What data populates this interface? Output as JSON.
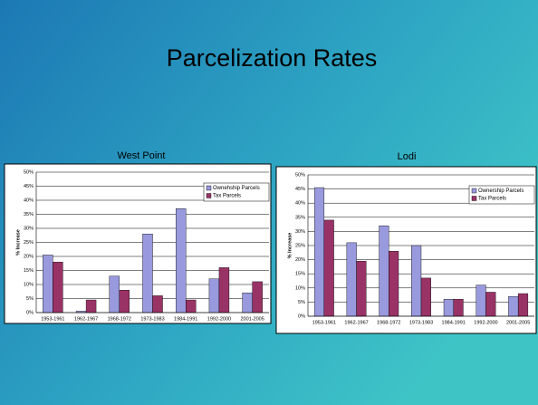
{
  "slide": {
    "title": "Parcelization Rates"
  },
  "chart_data": [
    {
      "type": "bar",
      "title": "West Point",
      "y_label": "% Increase",
      "categories": [
        "1953-1961",
        "1962-1967",
        "1968-1972",
        "1973-1983",
        "1984-1991",
        "1992-2000",
        "2001-2005"
      ],
      "series": [
        {
          "name": "Ownehship Parcels",
          "color": "#9999dd",
          "values": [
            20.5,
            0.5,
            13,
            28,
            37,
            12,
            7
          ]
        },
        {
          "name": "Tax Parcels",
          "color": "#993366",
          "values": [
            18,
            4.5,
            8,
            6,
            4.5,
            16,
            11
          ]
        }
      ],
      "ylim": [
        0,
        50
      ],
      "yticks": [
        {
          "value": 0,
          "label": "0%"
        },
        {
          "value": 5,
          "label": "5%"
        },
        {
          "value": 10,
          "label": "10%"
        },
        {
          "value": 15,
          "label": "15%"
        },
        {
          "value": 20,
          "label": "20%"
        },
        {
          "value": 25,
          "label": "25%"
        },
        {
          "value": 30,
          "label": "30%"
        },
        {
          "value": 35,
          "label": "35%"
        },
        {
          "value": 40,
          "label": "40%"
        },
        {
          "value": 45,
          "label": "45%"
        },
        {
          "value": 50,
          "label": "50%"
        }
      ],
      "grid": true,
      "legend": "upper right"
    },
    {
      "type": "bar",
      "title": "Lodi",
      "y_label": "% Increase",
      "categories": [
        "1953-1961",
        "1962-1967",
        "1968-1972",
        "1973-1983",
        "1984-1991",
        "1992-2000",
        "2001-2005"
      ],
      "series": [
        {
          "name": "Ownership Parcels",
          "color": "#9999dd",
          "values": [
            45.5,
            26,
            32,
            25,
            6,
            11,
            7
          ]
        },
        {
          "name": "Tax Parcels",
          "color": "#993366",
          "values": [
            34,
            19.5,
            23,
            13.5,
            6,
            8.5,
            8
          ]
        }
      ],
      "ylim": [
        0,
        50
      ],
      "yticks": [
        {
          "value": 0,
          "label": "0%"
        },
        {
          "value": 5,
          "label": "5%"
        },
        {
          "value": 10,
          "label": "10%"
        },
        {
          "value": 15,
          "label": "15%"
        },
        {
          "value": 20,
          "label": "20%"
        },
        {
          "value": 25,
          "label": "25%"
        },
        {
          "value": 30,
          "label": "30%"
        },
        {
          "value": 35,
          "label": "35%"
        },
        {
          "value": 40,
          "label": "40%"
        },
        {
          "value": 45,
          "label": "45%"
        },
        {
          "value": 50,
          "label": "50%"
        }
      ],
      "grid": true,
      "legend": "upper right"
    }
  ]
}
